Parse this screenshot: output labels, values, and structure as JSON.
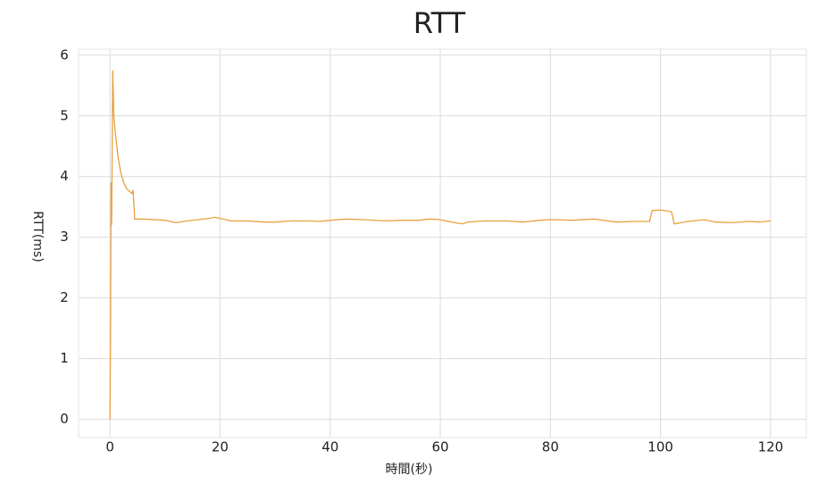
{
  "chart_data": {
    "type": "line",
    "title": "RTT",
    "x_label": "時間(秒)",
    "y_label": "RTT(ms)",
    "x": [
      0,
      0.1,
      0.2,
      0.3,
      0.5,
      0.7,
      1,
      1.5,
      2,
      2.5,
      3,
      4,
      4.2,
      4.5,
      6,
      8,
      10,
      12,
      14,
      16,
      18,
      19,
      20,
      22,
      25,
      28,
      30,
      33,
      36,
      38,
      40,
      43,
      46,
      50,
      53,
      56,
      58,
      60,
      62,
      64,
      65,
      68,
      72,
      75,
      78,
      80,
      84,
      88,
      92,
      95,
      98,
      98.5,
      100,
      102,
      102.5,
      105,
      108,
      110,
      113,
      116,
      118,
      120
    ],
    "series": [
      {
        "name": "RTT",
        "color": "#e8a040",
        "values": [
          0,
          1.3,
          3.9,
          3.2,
          5.75,
          5.0,
          4.7,
          4.3,
          4.05,
          3.9,
          3.8,
          3.72,
          3.78,
          3.3,
          3.3,
          3.29,
          3.28,
          3.24,
          3.27,
          3.29,
          3.31,
          3.33,
          3.31,
          3.27,
          3.27,
          3.25,
          3.25,
          3.27,
          3.27,
          3.26,
          3.28,
          3.3,
          3.29,
          3.27,
          3.28,
          3.28,
          3.3,
          3.29,
          3.25,
          3.22,
          3.25,
          3.27,
          3.27,
          3.25,
          3.28,
          3.29,
          3.28,
          3.3,
          3.25,
          3.26,
          3.26,
          3.44,
          3.45,
          3.42,
          3.22,
          3.26,
          3.29,
          3.25,
          3.24,
          3.26,
          3.25,
          3.27
        ]
      }
    ],
    "xlim": [
      -5.7,
      126.5
    ],
    "xticks": [
      0,
      20,
      40,
      60,
      80,
      100,
      120
    ],
    "ylim": [
      -0.3,
      6.1
    ],
    "yticks": [
      0,
      1,
      2,
      3,
      4,
      5,
      6
    ],
    "grid": true
  }
}
